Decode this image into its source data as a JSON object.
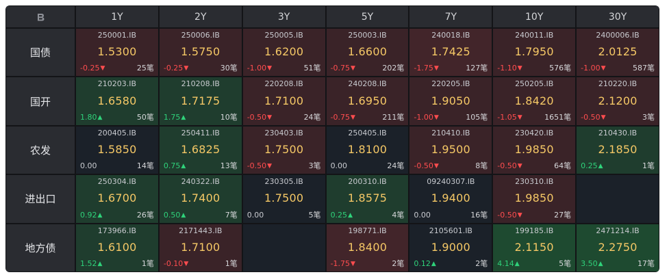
{
  "corner_icon": "logo-b-icon",
  "columns": [
    "1Y",
    "2Y",
    "3Y",
    "5Y",
    "7Y",
    "10Y",
    "30Y"
  ],
  "rows": [
    {
      "label": "国债",
      "cells": [
        {
          "code": "250001.IB",
          "yield": "1.5300",
          "change": "-0.25",
          "dir": "down",
          "trades": "25笔",
          "tone": "red"
        },
        {
          "code": "250006.IB",
          "yield": "1.5750",
          "change": "-0.25",
          "dir": "down",
          "trades": "30笔",
          "tone": "red"
        },
        {
          "code": "250005.IB",
          "yield": "1.6200",
          "change": "-1.00",
          "dir": "down",
          "trades": "51笔",
          "tone": "red"
        },
        {
          "code": "250003.IB",
          "yield": "1.6600",
          "change": "-0.75",
          "dir": "down",
          "trades": "202笔",
          "tone": "red"
        },
        {
          "code": "240018.IB",
          "yield": "1.7425",
          "change": "-1.75",
          "dir": "down",
          "trades": "127笔",
          "tone": "red2"
        },
        {
          "code": "240011.IB",
          "yield": "1.7950",
          "change": "-1.10",
          "dir": "down",
          "trades": "576笔",
          "tone": "red"
        },
        {
          "code": "2400006.IB",
          "yield": "2.0125",
          "change": "-1.00",
          "dir": "down",
          "trades": "587笔",
          "tone": "red"
        }
      ]
    },
    {
      "label": "国开",
      "cells": [
        {
          "code": "210203.IB",
          "yield": "1.6580",
          "change": "1.80",
          "dir": "up",
          "trades": "50笔",
          "tone": "green"
        },
        {
          "code": "210208.IB",
          "yield": "1.7175",
          "change": "1.75",
          "dir": "up",
          "trades": "10笔",
          "tone": "green"
        },
        {
          "code": "220208.IB",
          "yield": "1.7100",
          "change": "-0.50",
          "dir": "down",
          "trades": "24笔",
          "tone": "red"
        },
        {
          "code": "240208.IB",
          "yield": "1.6950",
          "change": "-0.75",
          "dir": "down",
          "trades": "211笔",
          "tone": "red"
        },
        {
          "code": "220205.IB",
          "yield": "1.9050",
          "change": "-1.00",
          "dir": "down",
          "trades": "105笔",
          "tone": "red"
        },
        {
          "code": "250205.IB",
          "yield": "1.8420",
          "change": "-1.05",
          "dir": "down",
          "trades": "1651笔",
          "tone": "red"
        },
        {
          "code": "210220.IB",
          "yield": "2.1200",
          "change": "-0.50",
          "dir": "down",
          "trades": "3笔",
          "tone": "red"
        }
      ]
    },
    {
      "label": "农发",
      "cells": [
        {
          "code": "200405.IB",
          "yield": "1.5850",
          "change": "0.00",
          "dir": "flat",
          "trades": "14笔",
          "tone": "neutral"
        },
        {
          "code": "250411.IB",
          "yield": "1.6825",
          "change": "0.75",
          "dir": "up",
          "trades": "13笔",
          "tone": "green"
        },
        {
          "code": "230403.IB",
          "yield": "1.7500",
          "change": "-0.50",
          "dir": "down",
          "trades": "3笔",
          "tone": "red"
        },
        {
          "code": "250405.IB",
          "yield": "1.8100",
          "change": "0.00",
          "dir": "flat",
          "trades": "24笔",
          "tone": "neutral"
        },
        {
          "code": "210410.IB",
          "yield": "1.9500",
          "change": "-0.50",
          "dir": "down",
          "trades": "8笔",
          "tone": "red"
        },
        {
          "code": "230420.IB",
          "yield": "1.9850",
          "change": "-0.50",
          "dir": "down",
          "trades": "64笔",
          "tone": "red"
        },
        {
          "code": "210430.IB",
          "yield": "2.1850",
          "change": "0.25",
          "dir": "up",
          "trades": "1笔",
          "tone": "green"
        }
      ]
    },
    {
      "label": "进出口",
      "cells": [
        {
          "code": "250304.IB",
          "yield": "1.6700",
          "change": "0.92",
          "dir": "up",
          "trades": "26笔",
          "tone": "green"
        },
        {
          "code": "240322.IB",
          "yield": "1.7400",
          "change": "0.50",
          "dir": "up",
          "trades": "7笔",
          "tone": "green"
        },
        {
          "code": "230305.IB",
          "yield": "1.7500",
          "change": "0.00",
          "dir": "flat",
          "trades": "5笔",
          "tone": "neutral"
        },
        {
          "code": "200310.IB",
          "yield": "1.8575",
          "change": "0.25",
          "dir": "up",
          "trades": "4笔",
          "tone": "green"
        },
        {
          "code": "09240307.IB",
          "yield": "1.9400",
          "change": "0.00",
          "dir": "flat",
          "trades": "16笔",
          "tone": "neutral"
        },
        {
          "code": "230310.IB",
          "yield": "1.9850",
          "change": "-0.50",
          "dir": "down",
          "trades": "27笔",
          "tone": "red"
        },
        null
      ]
    },
    {
      "label": "地方债",
      "cells": [
        {
          "code": "173966.IB",
          "yield": "1.6100",
          "change": "1.52",
          "dir": "up",
          "trades": "1笔",
          "tone": "green"
        },
        {
          "code": "2171443.IB",
          "yield": "1.7100",
          "change": "-0.10",
          "dir": "down",
          "trades": "1笔",
          "tone": "red"
        },
        null,
        {
          "code": "198771.IB",
          "yield": "1.8400",
          "change": "-1.75",
          "dir": "down",
          "trades": "2笔",
          "tone": "red2"
        },
        {
          "code": "2105601.IB",
          "yield": "1.9000",
          "change": "0.12",
          "dir": "up",
          "trades": "2笔",
          "tone": "neutral"
        },
        {
          "code": "199185.IB",
          "yield": "2.1150",
          "change": "4.14",
          "dir": "up",
          "trades": "5笔",
          "tone": "green2"
        },
        {
          "code": "2471214.IB",
          "yield": "2.2750",
          "change": "3.50",
          "dir": "up",
          "trades": "17笔",
          "tone": "green2"
        }
      ]
    }
  ],
  "colors": {
    "down": "#ff4d4f",
    "up": "#2fd27a",
    "yield": "#f5c866",
    "header_bg": "#2a2c31"
  }
}
